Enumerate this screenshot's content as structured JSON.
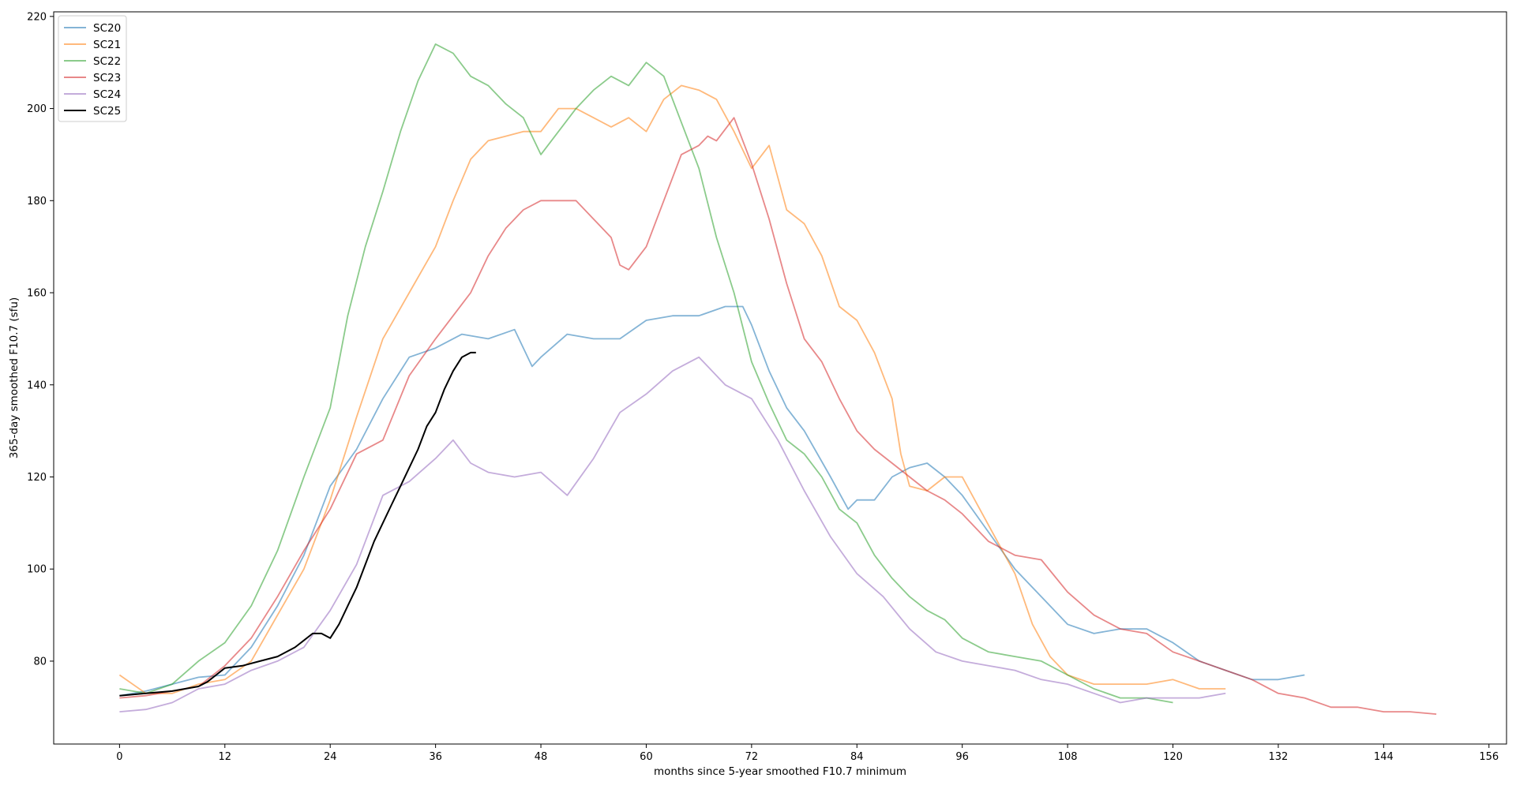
{
  "chart_data": {
    "type": "line",
    "title": "",
    "xlabel": "months since 5-year smoothed F10.7 minimum",
    "ylabel": "365-day smoothed F10.7 (sfu)",
    "xlim": [
      -7.5,
      158
    ],
    "ylim": [
      62,
      221
    ],
    "xticks": [
      0,
      12,
      24,
      36,
      48,
      60,
      72,
      84,
      96,
      108,
      120,
      132,
      144,
      156
    ],
    "yticks": [
      80,
      100,
      120,
      140,
      160,
      180,
      200,
      220
    ],
    "grid": false,
    "legend_position": "top-left",
    "series": [
      {
        "name": "SC20",
        "color": "#1f77b4",
        "alpha": 0.55,
        "x": [
          0,
          3,
          6,
          9,
          12,
          15,
          18,
          21,
          24,
          27,
          30,
          33,
          36,
          39,
          42,
          45,
          47,
          48,
          51,
          54,
          57,
          60,
          63,
          66,
          69,
          71,
          72,
          74,
          76,
          78,
          81,
          83,
          84,
          86,
          88,
          90,
          92,
          94,
          96,
          99,
          102,
          105,
          108,
          111,
          114,
          117,
          120,
          123,
          126,
          129,
          132,
          135
        ],
        "y": [
          72.5,
          73.5,
          75,
          76.5,
          77,
          83,
          92,
          103,
          118,
          126,
          137,
          146,
          148,
          151,
          150,
          152,
          144,
          146,
          151,
          150,
          150,
          154,
          155,
          155,
          157,
          157,
          153,
          143,
          135,
          130,
          120,
          113,
          115,
          115,
          120,
          122,
          123,
          120,
          116,
          108,
          100,
          94,
          88,
          86,
          87,
          87,
          84,
          80,
          78,
          76,
          76,
          77
        ]
      },
      {
        "name": "SC21",
        "color": "#ff7f0e",
        "alpha": 0.55,
        "x": [
          0,
          3,
          6,
          9,
          12,
          15,
          18,
          21,
          24,
          27,
          30,
          33,
          36,
          38,
          40,
          42,
          44,
          46,
          48,
          50,
          52,
          54,
          56,
          58,
          60,
          62,
          64,
          66,
          68,
          70,
          72,
          74,
          76,
          78,
          80,
          82,
          84,
          86,
          88,
          89,
          90,
          92,
          94,
          96,
          98,
          100,
          102,
          104,
          106,
          108,
          111,
          114,
          117,
          120,
          123,
          126
        ],
        "y": [
          77,
          73,
          73,
          75,
          76,
          80,
          90,
          100,
          115,
          133,
          150,
          160,
          170,
          180,
          189,
          193,
          194,
          195,
          195,
          200,
          200,
          198,
          196,
          198,
          195,
          202,
          205,
          204,
          202,
          195,
          187,
          192,
          178,
          175,
          168,
          157,
          154,
          147,
          137,
          125,
          118,
          117,
          120,
          120,
          113,
          106,
          99,
          88,
          81,
          77,
          75,
          75,
          75,
          76,
          74,
          74
        ]
      },
      {
        "name": "SC22",
        "color": "#2ca02c",
        "alpha": 0.55,
        "x": [
          0,
          3,
          6,
          9,
          12,
          15,
          18,
          21,
          24,
          26,
          28,
          30,
          32,
          34,
          36,
          38,
          40,
          42,
          44,
          46,
          48,
          50,
          52,
          54,
          56,
          58,
          60,
          62,
          64,
          66,
          68,
          70,
          72,
          74,
          76,
          78,
          80,
          82,
          84,
          86,
          88,
          90,
          92,
          94,
          96,
          99,
          102,
          105,
          108,
          111,
          114,
          117,
          120
        ],
        "y": [
          74,
          73,
          75,
          80,
          84,
          92,
          104,
          120,
          135,
          155,
          170,
          182,
          195,
          206,
          214,
          212,
          207,
          205,
          201,
          198,
          190,
          195,
          200,
          204,
          207,
          205,
          210,
          207,
          197,
          187,
          172,
          160,
          145,
          136,
          128,
          125,
          120,
          113,
          110,
          103,
          98,
          94,
          91,
          89,
          85,
          82,
          81,
          80,
          77,
          74,
          72,
          72,
          71
        ]
      },
      {
        "name": "SC23",
        "color": "#d62728",
        "alpha": 0.55,
        "x": [
          0,
          3,
          6,
          9,
          12,
          15,
          18,
          21,
          24,
          27,
          30,
          33,
          36,
          38,
          40,
          42,
          44,
          46,
          48,
          50,
          52,
          54,
          56,
          57,
          58,
          60,
          62,
          64,
          66,
          67,
          68,
          70,
          72,
          74,
          76,
          78,
          80,
          82,
          84,
          86,
          88,
          90,
          92,
          94,
          96,
          99,
          102,
          105,
          108,
          111,
          114,
          117,
          120,
          123,
          126,
          129,
          132,
          135,
          138,
          141,
          144,
          147,
          150
        ],
        "y": [
          72,
          72.5,
          73.5,
          74.5,
          79,
          85,
          94,
          104,
          113,
          125,
          128,
          142,
          150,
          155,
          160,
          168,
          174,
          178,
          180,
          180,
          180,
          176,
          172,
          166,
          165,
          170,
          180,
          190,
          192,
          194,
          193,
          198,
          188,
          176,
          162,
          150,
          145,
          137,
          130,
          126,
          123,
          120,
          117,
          115,
          112,
          106,
          103,
          102,
          95,
          90,
          87,
          86,
          82,
          80,
          78,
          76,
          73,
          72,
          70,
          70,
          69,
          69,
          68.5
        ]
      },
      {
        "name": "SC24",
        "color": "#9467bd",
        "alpha": 0.55,
        "x": [
          0,
          3,
          6,
          9,
          12,
          15,
          18,
          21,
          24,
          27,
          30,
          33,
          36,
          38,
          40,
          42,
          45,
          48,
          51,
          54,
          57,
          60,
          63,
          66,
          69,
          72,
          75,
          78,
          81,
          84,
          87,
          90,
          93,
          96,
          99,
          102,
          105,
          108,
          111,
          114,
          117,
          120,
          123,
          126
        ],
        "y": [
          69,
          69.5,
          71,
          74,
          75,
          78,
          80,
          83,
          91,
          101,
          116,
          119,
          124,
          128,
          123,
          121,
          120,
          121,
          116,
          124,
          134,
          138,
          143,
          146,
          140,
          137,
          128,
          117,
          107,
          99,
          94,
          87,
          82,
          80,
          79,
          78,
          76,
          75,
          73,
          71,
          72,
          72,
          72,
          73
        ]
      },
      {
        "name": "SC25",
        "color": "#000000",
        "alpha": 1.0,
        "x": [
          0,
          3,
          6,
          9,
          10,
          11,
          12,
          14,
          16,
          18,
          20,
          22,
          23,
          24,
          25,
          26,
          27,
          28,
          29,
          30,
          31,
          32,
          33,
          34,
          35,
          36,
          37,
          38,
          39,
          40,
          40.6
        ],
        "y": [
          72.5,
          73,
          73.5,
          74.5,
          75.5,
          77,
          78.5,
          79,
          80,
          81,
          83,
          86,
          86,
          85,
          88,
          92,
          96,
          101,
          106,
          110,
          114,
          118,
          122,
          126,
          131,
          134,
          139,
          143,
          146,
          147,
          147
        ]
      }
    ]
  }
}
